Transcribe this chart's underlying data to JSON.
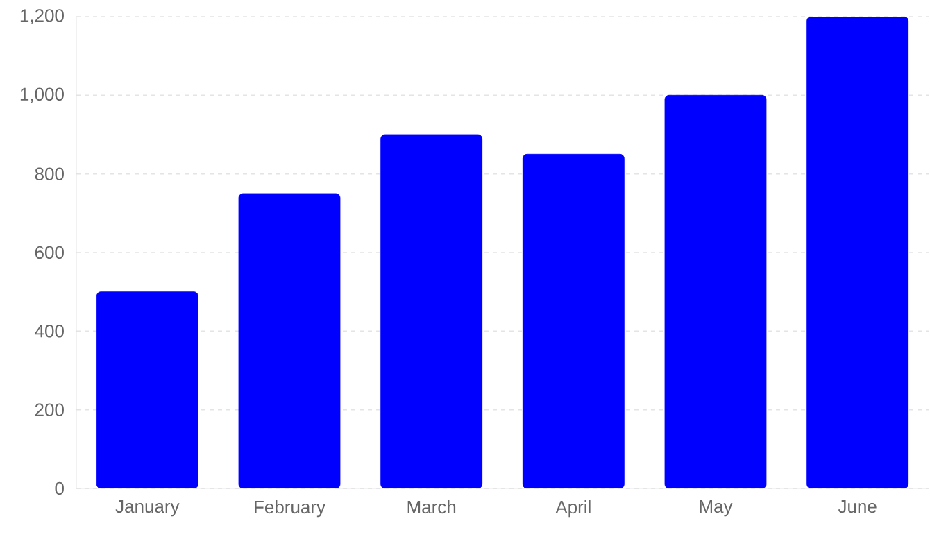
{
  "chart_data": {
    "type": "bar",
    "categories": [
      "January",
      "February",
      "March",
      "April",
      "May",
      "June"
    ],
    "values": [
      500,
      750,
      900,
      850,
      1000,
      1200
    ],
    "color": "#0000ff",
    "ylim": [
      0,
      1200
    ],
    "yticks": [
      0,
      200,
      400,
      600,
      800,
      {
        "value": 1000,
        "label": "1,000"
      },
      {
        "value": 1200,
        "label": "1,200"
      }
    ],
    "grid": "y"
  }
}
